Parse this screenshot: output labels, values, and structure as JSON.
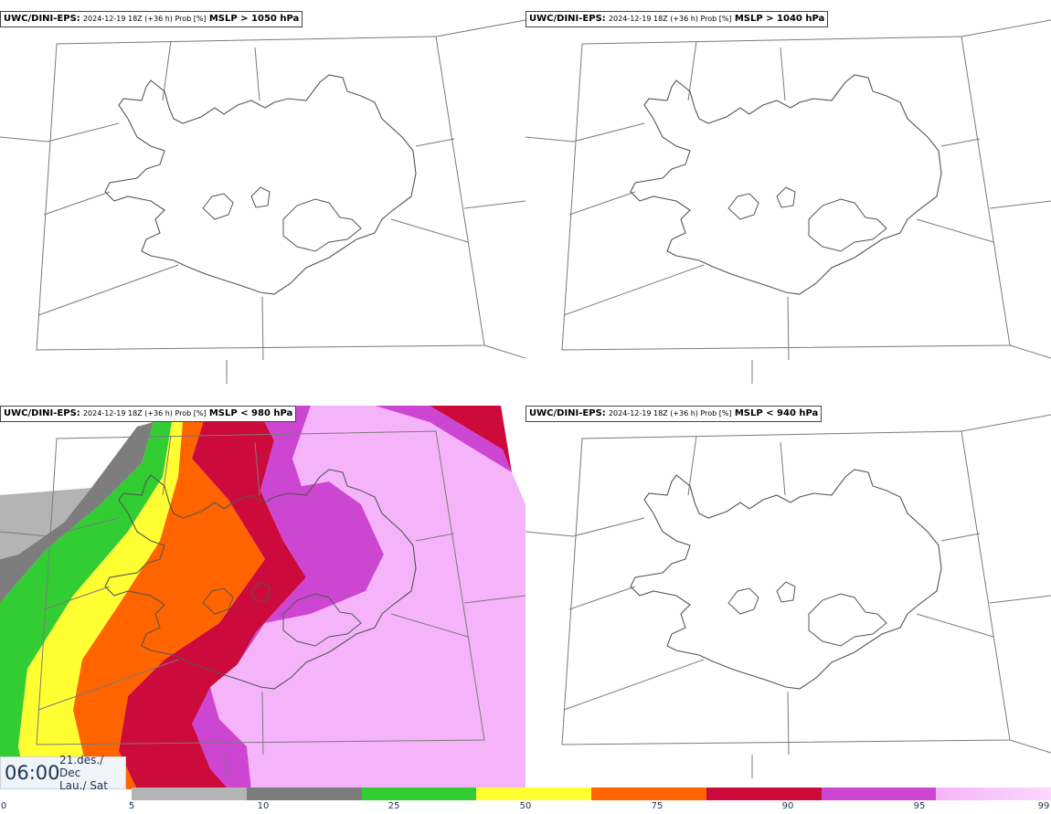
{
  "panels": [
    {
      "model": "UWC/DINI-EPS:",
      "run": "2024-12-19 18Z (+36 h) Prob [%]",
      "field": "MSLP > 1050 hPa"
    },
    {
      "model": "UWC/DINI-EPS:",
      "run": "2024-12-19 18Z (+36 h) Prob [%]",
      "field": "MSLP > 1040 hPa"
    },
    {
      "model": "UWC/DINI-EPS:",
      "run": "2024-12-19 18Z (+36 h) Prob [%]",
      "field": "MSLP < 980 hPa"
    },
    {
      "model": "UWC/DINI-EPS:",
      "run": "2024-12-19 18Z (+36 h) Prob [%]",
      "field": "MSLP < 940 hPa"
    }
  ],
  "valid_time": {
    "hour": "06:00",
    "date_line1": "21.des./ Dec",
    "date_line2": "Lau./ Sat"
  },
  "colorbar": {
    "ticks": [
      "0",
      "5",
      "10",
      "25",
      "50",
      "75",
      "90",
      "95",
      "99"
    ],
    "colors": [
      "#ffffff",
      "#b4b4b4",
      "#7d7d7d",
      "#32cd32",
      "#ffff32",
      "#ff6400",
      "#cd0a3c",
      "#cd46d2",
      "#f5b4fa"
    ]
  }
}
